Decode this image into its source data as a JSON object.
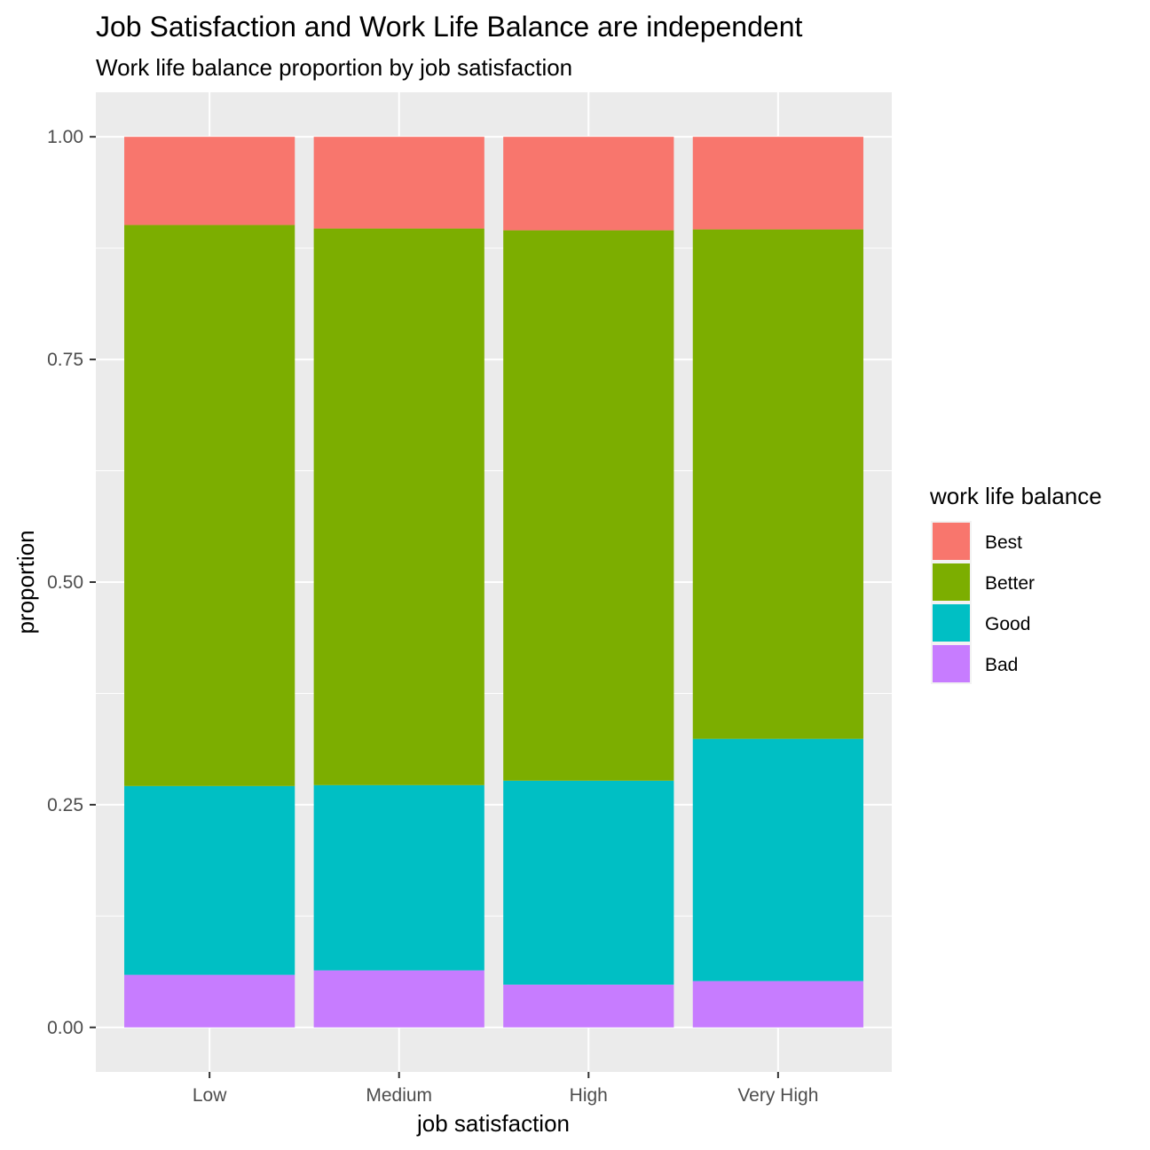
{
  "chart_data": {
    "type": "bar",
    "stacked": true,
    "title": "Job Satisfaction and Work Life Balance are independent",
    "subtitle": "Work life balance proportion by job satisfaction",
    "xlabel": "job satisfaction",
    "ylabel": "proportion",
    "categories": [
      "Low",
      "Medium",
      "High",
      "Very High"
    ],
    "ylim": [
      -0.05,
      1.05
    ],
    "yticks": [
      "0.00",
      "0.25",
      "0.50",
      "0.75",
      "1.00"
    ],
    "ytick_values": [
      0,
      0.25,
      0.5,
      0.75,
      1.0
    ],
    "grid": true,
    "legend": {
      "title": "work life balance",
      "placement": "right"
    },
    "series": [
      {
        "name": "Bad",
        "color": "#C77CFF",
        "values": [
          0.059,
          0.064,
          0.048,
          0.052
        ]
      },
      {
        "name": "Good",
        "color": "#00BFC4",
        "values": [
          0.212,
          0.208,
          0.229,
          0.272
        ]
      },
      {
        "name": "Better",
        "color": "#7CAE00",
        "values": [
          0.63,
          0.625,
          0.618,
          0.572
        ]
      },
      {
        "name": "Best",
        "color": "#F8766D",
        "values": [
          0.099,
          0.103,
          0.105,
          0.104
        ]
      }
    ],
    "legend_order": [
      "Best",
      "Better",
      "Good",
      "Bad"
    ]
  }
}
